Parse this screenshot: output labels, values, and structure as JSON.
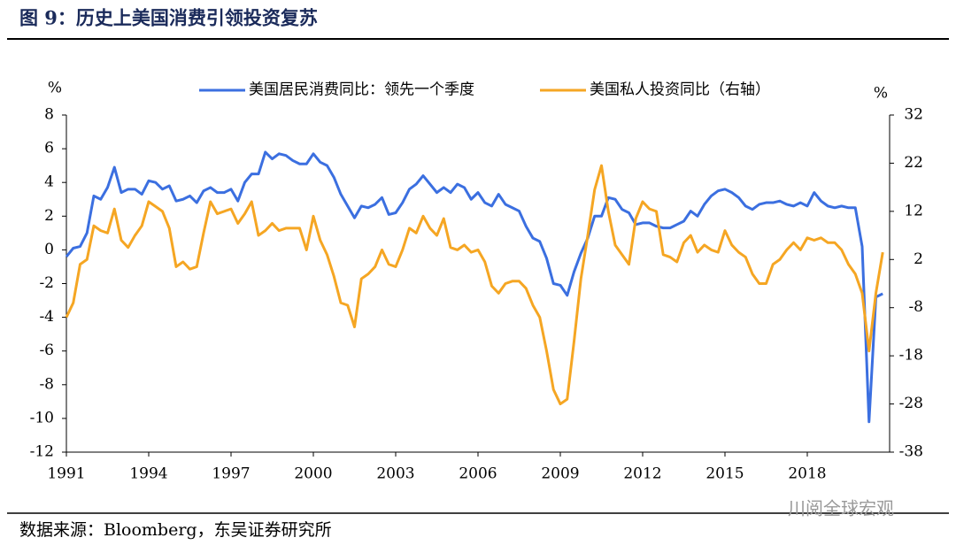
{
  "chart_data": {
    "type": "line",
    "title": "图 9：历史上美国消费引领投资复苏",
    "source": "数据来源：Bloomberg，东吴证券研究所",
    "watermark": "川阅全球宏观",
    "y_unit": "%",
    "y2_unit": "%",
    "xlim": [
      1991,
      2021
    ],
    "xticks": [
      1991,
      1994,
      1997,
      2000,
      2003,
      2006,
      2009,
      2012,
      2015,
      2018
    ],
    "ylim": [
      -12,
      8
    ],
    "yticks": [
      -12,
      -10,
      -8,
      -6,
      -4,
      -2,
      0,
      2,
      4,
      6,
      8
    ],
    "y2lim": [
      -38,
      32
    ],
    "y2ticks": [
      -38,
      -28,
      -18,
      -8,
      2,
      12,
      22,
      32
    ],
    "x": [
      1991,
      1991.25,
      1991.5,
      1991.75,
      1992,
      1992.25,
      1992.5,
      1992.75,
      1993,
      1993.25,
      1993.5,
      1993.75,
      1994,
      1994.25,
      1994.5,
      1994.75,
      1995,
      1995.25,
      1995.5,
      1995.75,
      1996,
      1996.25,
      1996.5,
      1996.75,
      1997,
      1997.25,
      1997.5,
      1997.75,
      1998,
      1998.25,
      1998.5,
      1998.75,
      1999,
      1999.25,
      1999.5,
      1999.75,
      2000,
      2000.25,
      2000.5,
      2000.75,
      2001,
      2001.25,
      2001.5,
      2001.75,
      2002,
      2002.25,
      2002.5,
      2002.75,
      2003,
      2003.25,
      2003.5,
      2003.75,
      2004,
      2004.25,
      2004.5,
      2004.75,
      2005,
      2005.25,
      2005.5,
      2005.75,
      2006,
      2006.25,
      2006.5,
      2006.75,
      2007,
      2007.25,
      2007.5,
      2007.75,
      2008,
      2008.25,
      2008.5,
      2008.75,
      2009,
      2009.25,
      2009.5,
      2009.75,
      2010,
      2010.25,
      2010.5,
      2010.75,
      2011,
      2011.25,
      2011.5,
      2011.75,
      2012,
      2012.25,
      2012.5,
      2012.75,
      2013,
      2013.25,
      2013.5,
      2013.75,
      2014,
      2014.25,
      2014.5,
      2014.75,
      2015,
      2015.25,
      2015.5,
      2015.75,
      2016,
      2016.25,
      2016.5,
      2016.75,
      2017,
      2017.25,
      2017.5,
      2017.75,
      2018,
      2018.25,
      2018.5,
      2018.75,
      2019,
      2019.25,
      2019.5,
      2019.75,
      2020,
      2020.25,
      2020.5,
      2020.75
    ],
    "series": [
      {
        "name": "美国居民消费同比：领先一个季度",
        "color": "#3b6fe0",
        "axis": "y",
        "values": [
          -0.4,
          0.1,
          0.2,
          1.0,
          3.2,
          3.0,
          3.7,
          4.9,
          3.4,
          3.6,
          3.6,
          3.3,
          4.1,
          4.0,
          3.6,
          3.8,
          2.9,
          3.0,
          3.2,
          2.8,
          3.5,
          3.7,
          3.4,
          3.4,
          3.6,
          2.9,
          4.0,
          4.5,
          4.5,
          5.8,
          5.4,
          5.7,
          5.6,
          5.3,
          5.1,
          5.1,
          5.7,
          5.2,
          5.0,
          4.3,
          3.3,
          2.6,
          1.9,
          2.6,
          2.5,
          2.7,
          3.1,
          2.1,
          2.2,
          2.8,
          3.6,
          3.9,
          4.4,
          3.9,
          3.4,
          3.7,
          3.4,
          3.9,
          3.7,
          3.0,
          3.4,
          2.8,
          2.6,
          3.3,
          2.7,
          2.5,
          2.3,
          1.4,
          0.7,
          0.5,
          -0.5,
          -2.0,
          -2.1,
          -2.7,
          -1.3,
          -0.2,
          0.7,
          2.0,
          2.0,
          3.1,
          3.0,
          2.4,
          2.2,
          1.5,
          1.6,
          1.6,
          1.4,
          1.3,
          1.3,
          1.5,
          1.7,
          2.3,
          2.0,
          2.7,
          3.2,
          3.5,
          3.6,
          3.4,
          3.1,
          2.6,
          2.4,
          2.7,
          2.8,
          2.8,
          2.9,
          2.7,
          2.6,
          2.8,
          2.6,
          3.4,
          2.9,
          2.6,
          2.5,
          2.6,
          2.5,
          2.5,
          0.2,
          -10.2,
          -2.8,
          -2.6
        ]
      },
      {
        "name": "美国私人投资同比（右轴）",
        "color": "#f5a623",
        "axis": "y2",
        "values": [
          -10,
          -7,
          1,
          2,
          9,
          8,
          7.5,
          12.5,
          6,
          4.5,
          7,
          9,
          14,
          13,
          12,
          8.5,
          0.5,
          1.5,
          0,
          0.5,
          7.5,
          14,
          11.5,
          12,
          12.5,
          9.5,
          11.5,
          14,
          7,
          8,
          9.5,
          8,
          8.5,
          8.5,
          8.5,
          4,
          11,
          6,
          3,
          -1.5,
          -7,
          -7.5,
          -12,
          -2,
          -1,
          0.5,
          4,
          1,
          0.5,
          4,
          8.5,
          7.5,
          11,
          8.5,
          7,
          10.5,
          4.5,
          4,
          5,
          3.5,
          4,
          1.5,
          -3.5,
          -5,
          -3,
          -2.5,
          -2.5,
          -4,
          -7.5,
          -10,
          -17,
          -25,
          -28,
          -27,
          -15,
          -2,
          7,
          16.5,
          21.5,
          12,
          5,
          3,
          1,
          10.5,
          14,
          12.5,
          12,
          3,
          2.5,
          1.5,
          5.5,
          7,
          3.5,
          5,
          4,
          3.5,
          8,
          5,
          3.5,
          2.5,
          -1,
          -3,
          -3,
          1,
          2,
          4,
          5.5,
          4,
          6.5,
          6,
          6.5,
          5.5,
          5.5,
          4,
          1,
          -1,
          -5,
          -17,
          -5,
          3.5
        ]
      }
    ]
  }
}
